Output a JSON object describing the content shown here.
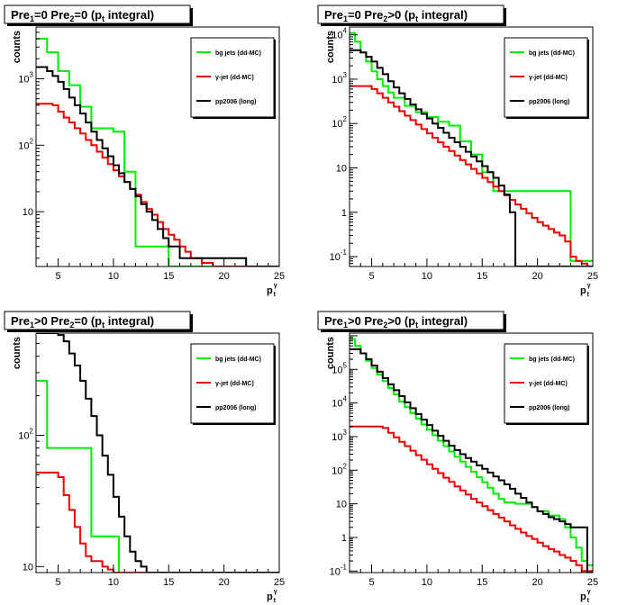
{
  "colors": {
    "bg_jets": "#00ee00",
    "gamma_jet": "#ee0000",
    "pp2006": "#000000"
  },
  "chart_data": [
    {
      "type": "line",
      "step": true,
      "title": {
        "a": "Pre",
        "a_sub": "1",
        "b": "=0  Pre",
        "b_sub": "2",
        "c": "=0  (p",
        "c_sub": "t",
        "d": " integral)"
      },
      "ylabel": "counts",
      "xlabel": {
        "main": "p",
        "sub": "t",
        "sup": "γ"
      },
      "xlim": [
        3,
        25
      ],
      "ylim": [
        1.5,
        6000
      ],
      "yscale": "log",
      "xticks": [
        5,
        10,
        15,
        20,
        25
      ],
      "yticks": [
        {
          "v": 10,
          "label": "10"
        },
        {
          "v": 100,
          "label": "10",
          "sup": "2"
        },
        {
          "v": 1000,
          "label": "10",
          "sup": "3"
        }
      ],
      "legend": "top-right",
      "series": [
        {
          "name": "bg jets (dd-MC)",
          "color": "bg_jets",
          "x": [
            3,
            4,
            5,
            6,
            7,
            8,
            10,
            11,
            12,
            15,
            16
          ],
          "y": [
            4000,
            2500,
            1300,
            800,
            380,
            180,
            160,
            40,
            3,
            1,
            1
          ]
        },
        {
          "name": "γ-jet (dd-MC)",
          "color": "gamma_jet",
          "x": [
            3,
            4.5,
            5,
            5.5,
            6,
            6.5,
            7,
            7.5,
            8,
            8.5,
            9,
            9.5,
            10,
            10.5,
            11,
            11.5,
            12,
            12.5,
            13,
            13.5,
            14,
            14.5,
            15,
            15.5,
            16,
            16.5,
            17,
            18,
            19,
            20,
            22
          ],
          "y": [
            420,
            400,
            320,
            260,
            220,
            180,
            150,
            120,
            100,
            80,
            65,
            52,
            42,
            34,
            28,
            22,
            18,
            14,
            11,
            9,
            7,
            5.5,
            4.5,
            3.8,
            3,
            2.5,
            2,
            1.7,
            1.5,
            1.5,
            1.5
          ]
        },
        {
          "name": "pp2006 (long)",
          "color": "pp2006",
          "x": [
            3,
            4,
            4.5,
            5,
            5.5,
            6,
            6.5,
            7,
            7.5,
            8,
            8.5,
            9,
            9.5,
            10,
            10.5,
            11,
            11.5,
            12,
            12.5,
            13,
            13.5,
            14,
            14.5,
            15,
            16,
            17,
            18,
            20,
            22
          ],
          "y": [
            1500,
            1300,
            1100,
            900,
            700,
            520,
            400,
            300,
            220,
            160,
            120,
            90,
            68,
            50,
            38,
            28,
            22,
            17,
            13,
            10,
            7.5,
            5.5,
            4,
            3,
            2,
            2,
            2,
            2,
            1.5
          ]
        }
      ]
    },
    {
      "type": "line",
      "step": true,
      "title": {
        "a": "Pre",
        "a_sub": "1",
        "b": "=0  Pre",
        "b_sub": "2",
        "c": ">0  (p",
        "c_sub": "t",
        "d": " integral)"
      },
      "ylabel": "counts",
      "xlabel": {
        "main": "p",
        "sub": "t",
        "sup": "γ"
      },
      "xlim": [
        3,
        25
      ],
      "ylim": [
        0.06,
        15000
      ],
      "yscale": "log",
      "xticks": [
        5,
        10,
        15,
        20,
        25
      ],
      "yticks": [
        {
          "v": 0.1,
          "label": "10",
          "sup": "-1"
        },
        {
          "v": 1,
          "label": "1"
        },
        {
          "v": 10,
          "label": "10"
        },
        {
          "v": 100,
          "label": "10",
          "sup": "2"
        },
        {
          "v": 1000,
          "label": "10",
          "sup": "3"
        },
        {
          "v": 10000,
          "label": "10",
          "sup": "4"
        }
      ],
      "legend": "top-right",
      "series": [
        {
          "name": "bg jets (dd-MC)",
          "color": "bg_jets",
          "x": [
            3,
            3.5,
            4,
            4.5,
            5,
            5.5,
            6,
            6.5,
            7,
            8,
            9,
            10,
            11,
            12,
            13,
            14,
            15,
            16,
            17,
            23,
            25
          ],
          "y": [
            11000,
            7000,
            4000,
            2500,
            1500,
            1000,
            700,
            500,
            380,
            250,
            180,
            140,
            110,
            90,
            40,
            20,
            8,
            3,
            3,
            0.08,
            0.08
          ]
        },
        {
          "name": "γ-jet (dd-MC)",
          "color": "gamma_jet",
          "x": [
            3,
            5,
            5.5,
            6,
            6.5,
            7,
            7.5,
            8,
            8.5,
            9,
            9.5,
            10,
            10.5,
            11,
            11.5,
            12,
            12.5,
            13,
            13.5,
            14,
            14.5,
            15,
            15.5,
            16,
            16.5,
            17,
            17.5,
            18,
            18.5,
            19,
            19.5,
            20,
            20.5,
            21,
            21.5,
            22,
            22.5,
            23,
            23.5,
            24,
            24.5
          ],
          "y": [
            700,
            600,
            480,
            380,
            300,
            240,
            190,
            150,
            120,
            95,
            75,
            60,
            48,
            38,
            30,
            24,
            19,
            15,
            12,
            9.5,
            7.5,
            6,
            4.8,
            3.8,
            3,
            2.4,
            1.9,
            1.5,
            1.2,
            0.95,
            0.75,
            0.6,
            0.5,
            0.42,
            0.35,
            0.3,
            0.22,
            0.1,
            0.08,
            0.07,
            0.06
          ]
        },
        {
          "name": "pp2006 (long)",
          "color": "pp2006",
          "x": [
            3,
            4,
            4.5,
            5,
            5.5,
            6,
            6.5,
            7,
            7.5,
            8,
            8.5,
            9,
            9.5,
            10,
            10.5,
            11,
            11.5,
            12,
            12.5,
            13,
            13.5,
            14,
            14.5,
            15,
            15.5,
            16,
            16.5,
            17,
            17.5,
            18
          ],
          "y": [
            4500,
            4000,
            3200,
            2500,
            1800,
            1300,
            900,
            650,
            480,
            360,
            270,
            210,
            165,
            130,
            100,
            80,
            62,
            48,
            38,
            30,
            23,
            18,
            14,
            11,
            8,
            6,
            4,
            2.5,
            1,
            0.06
          ]
        }
      ]
    },
    {
      "type": "line",
      "step": true,
      "title": {
        "a": "Pre",
        "a_sub": "1",
        "b": ">0  Pre",
        "b_sub": "2",
        "c": "=0  (p",
        "c_sub": "t",
        "d": " integral)"
      },
      "ylabel": "counts",
      "xlabel": {
        "main": "p",
        "sub": "t",
        "sup": "γ"
      },
      "xlim": [
        3,
        25
      ],
      "ylim": [
        9,
        600
      ],
      "yscale": "log",
      "xticks": [
        5,
        10,
        15,
        20,
        25
      ],
      "yticks": [
        {
          "v": 10,
          "label": "10"
        },
        {
          "v": 100,
          "label": "10",
          "sup": "2"
        }
      ],
      "legend": "top-right",
      "series": [
        {
          "name": "bg jets (dd-MC)",
          "color": "bg_jets",
          "x": [
            3,
            4,
            8,
            10.5,
            11
          ],
          "y": [
            260,
            80,
            17,
            9,
            9
          ]
        },
        {
          "name": "γ-jet (dd-MC)",
          "color": "gamma_jet",
          "x": [
            3,
            5,
            5.5,
            6,
            6.5,
            7,
            7.5,
            8,
            9,
            9.5,
            10,
            11
          ],
          "y": [
            52,
            48,
            35,
            27,
            20,
            15,
            12,
            11,
            10,
            9.5,
            9,
            9
          ]
        },
        {
          "name": "pp2006 (long)",
          "color": "pp2006",
          "x": [
            3,
            5,
            5.5,
            6,
            6.5,
            7,
            7.5,
            8,
            8.5,
            9,
            9.5,
            10,
            10.5,
            11,
            11.5,
            12,
            12.5,
            13
          ],
          "y": [
            600,
            580,
            520,
            420,
            340,
            260,
            190,
            140,
            100,
            70,
            50,
            34,
            24,
            17,
            13,
            11,
            10,
            9
          ]
        }
      ]
    },
    {
      "type": "line",
      "step": true,
      "title": {
        "a": "Pre",
        "a_sub": "1",
        "b": ">0  Pre",
        "b_sub": "2",
        "c": ">0  (p",
        "c_sub": "t",
        "d": " integral)"
      },
      "ylabel": "counts",
      "xlabel": {
        "main": "p",
        "sub": "t",
        "sup": "γ"
      },
      "xlim": [
        3,
        25
      ],
      "ylim": [
        0.09,
        1200000
      ],
      "yscale": "log",
      "xticks": [
        5,
        10,
        15,
        20,
        25
      ],
      "yticks": [
        {
          "v": 0.1,
          "label": "10",
          "sup": "-1"
        },
        {
          "v": 1,
          "label": "1"
        },
        {
          "v": 10,
          "label": "10"
        },
        {
          "v": 100,
          "label": "10",
          "sup": "2"
        },
        {
          "v": 1000,
          "label": "10",
          "sup": "3"
        },
        {
          "v": 10000,
          "label": "10",
          "sup": "4"
        },
        {
          "v": 100000,
          "label": "10",
          "sup": "5"
        }
      ],
      "legend": "top-right",
      "series": [
        {
          "name": "bg jets (dd-MC)",
          "color": "bg_jets",
          "x": [
            3,
            3.5,
            4,
            4.5,
            5,
            5.5,
            6,
            6.5,
            7,
            7.5,
            8,
            8.5,
            9,
            9.5,
            10,
            10.5,
            11,
            11.5,
            12,
            12.5,
            13,
            13.5,
            14,
            14.5,
            15,
            15.5,
            16,
            16.5,
            17,
            18,
            19,
            19.5,
            20,
            21,
            22,
            22.5,
            23,
            23.5,
            24,
            24.5
          ],
          "y": [
            800000,
            500000,
            300000,
            180000,
            110000,
            70000,
            45000,
            28000,
            18000,
            11000,
            7500,
            5000,
            3400,
            2300,
            1600,
            1100,
            750,
            520,
            360,
            250,
            180,
            125,
            90,
            62,
            44,
            30,
            20,
            14,
            11,
            10,
            10,
            8,
            6,
            4.5,
            3.5,
            2,
            1,
            0.5,
            0.2,
            0.15
          ]
        },
        {
          "name": "γ-jet (dd-MC)",
          "color": "gamma_jet",
          "x": [
            3,
            6,
            6.5,
            7,
            7.5,
            8,
            8.5,
            9,
            9.5,
            10,
            10.5,
            11,
            11.5,
            12,
            12.5,
            13,
            13.5,
            14,
            14.5,
            15,
            15.5,
            16,
            16.5,
            17,
            17.5,
            18,
            18.5,
            19,
            19.5,
            20,
            20.5,
            21,
            21.5,
            22,
            22.5,
            23,
            23.5,
            24
          ],
          "y": [
            2000,
            1800,
            1300,
            950,
            700,
            520,
            380,
            280,
            205,
            150,
            110,
            82,
            60,
            45,
            33,
            25,
            19,
            14,
            11,
            8.5,
            6.5,
            5,
            3.9,
            3,
            2.3,
            1.8,
            1.4,
            1.1,
            0.9,
            0.7,
            0.55,
            0.45,
            0.38,
            0.3,
            0.25,
            0.2,
            0.15,
            0.1
          ]
        },
        {
          "name": "pp2006 (long)",
          "color": "pp2006",
          "x": [
            3,
            4,
            4.5,
            5,
            5.5,
            6,
            6.5,
            7,
            7.5,
            8,
            8.5,
            9,
            9.5,
            10,
            10.5,
            11,
            11.5,
            12,
            12.5,
            13,
            13.5,
            14,
            14.5,
            15,
            15.5,
            16,
            16.5,
            17,
            17.5,
            18,
            18.5,
            19,
            19.5,
            20,
            20.5,
            21,
            21.5,
            22,
            22.5,
            23,
            24,
            24.5
          ],
          "y": [
            400000,
            300000,
            200000,
            130000,
            85000,
            55000,
            36000,
            24000,
            16000,
            10500,
            7000,
            4700,
            3200,
            2200,
            1500,
            1050,
            750,
            540,
            400,
            300,
            230,
            180,
            140,
            110,
            85,
            65,
            50,
            38,
            28,
            20,
            15,
            11,
            8,
            6,
            5,
            4,
            3.5,
            3,
            2.5,
            2,
            2,
            0.09
          ]
        }
      ]
    }
  ]
}
